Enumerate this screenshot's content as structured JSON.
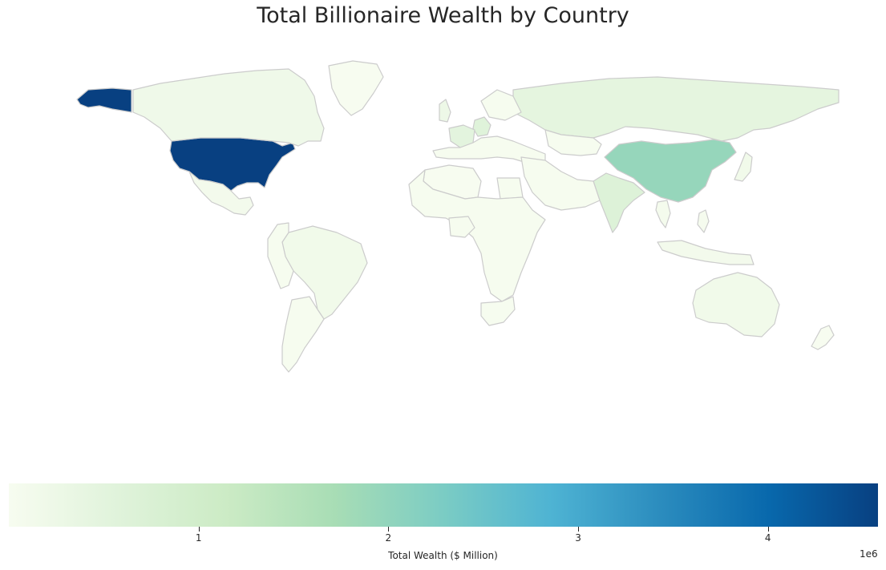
{
  "title": "Total Billionaire Wealth by Country",
  "colorbar": {
    "label": "Total Wealth ($ Million)",
    "ticks": [
      1,
      2,
      3,
      4
    ],
    "offset_text": "1e6",
    "range": [
      0,
      4.58
    ],
    "colormap": "GnBu",
    "stops": [
      "#f7fcf0",
      "#e0f3db",
      "#ccebc5",
      "#a8ddb5",
      "#7bccc4",
      "#4eb3d3",
      "#2b8cbe",
      "#0868ac",
      "#084081"
    ]
  },
  "chart_data": {
    "type": "choropleth",
    "title": "Total Billionaire Wealth by Country",
    "value_label": "Total Wealth ($ Million)",
    "scale_multiplier": 1000000,
    "value_range": [
      0,
      4.58
    ],
    "regions": [
      {
        "name": "United States",
        "value": 4.58
      },
      {
        "name": "China",
        "value": 1.95
      },
      {
        "name": "India",
        "value": 0.65
      },
      {
        "name": "Russia",
        "value": 0.45
      },
      {
        "name": "Germany",
        "value": 0.6
      },
      {
        "name": "France",
        "value": 0.5
      },
      {
        "name": "United Kingdom",
        "value": 0.25
      },
      {
        "name": "Canada",
        "value": 0.2
      },
      {
        "name": "Brazil",
        "value": 0.15
      },
      {
        "name": "Australia",
        "value": 0.15
      },
      {
        "name": "Mexico",
        "value": 0.1
      },
      {
        "name": "Japan",
        "value": 0.15
      },
      {
        "name": "Argentina",
        "value": 0.03
      },
      {
        "name": "Kazakhstan",
        "value": 0.03
      },
      {
        "name": "Algeria",
        "value": 0.01
      },
      {
        "name": "Egypt",
        "value": 0.03
      },
      {
        "name": "Nigeria",
        "value": 0.03
      },
      {
        "name": "South Africa",
        "value": 0.03
      },
      {
        "name": "Indonesia",
        "value": 0.1
      },
      {
        "name": "Thailand",
        "value": 0.08
      },
      {
        "name": "Philippines",
        "value": 0.05
      },
      {
        "name": "New Zealand",
        "value": 0.01
      },
      {
        "name": "Greenland",
        "value": 0.0
      }
    ]
  }
}
